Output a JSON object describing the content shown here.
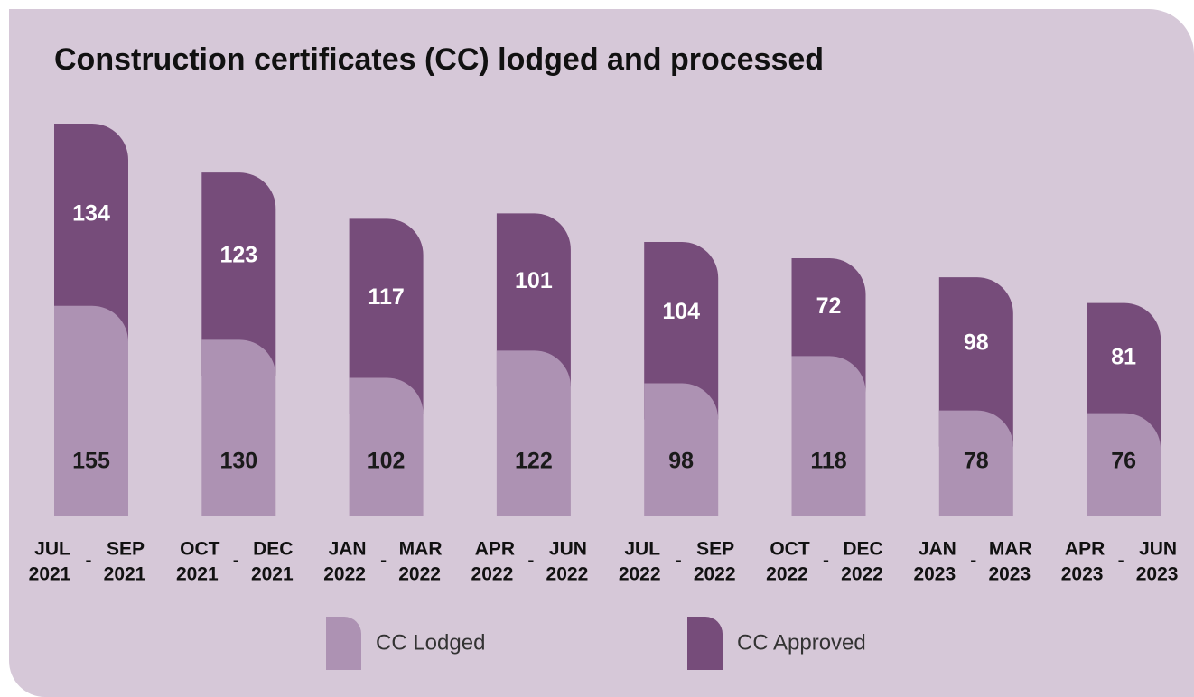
{
  "chart_data": {
    "type": "stacked_bar",
    "title": "Construction certificates (CC) lodged and processed",
    "range_separator": "-",
    "categories": [
      {
        "start_month": "JUL",
        "start_year": "2021",
        "end_month": "SEP",
        "end_year": "2021"
      },
      {
        "start_month": "OCT",
        "start_year": "2021",
        "end_month": "DEC",
        "end_year": "2021"
      },
      {
        "start_month": "JAN",
        "start_year": "2022",
        "end_month": "MAR",
        "end_year": "2022"
      },
      {
        "start_month": "APR",
        "start_year": "2022",
        "end_month": "JUN",
        "end_year": "2022"
      },
      {
        "start_month": "JUL",
        "start_year": "2022",
        "end_month": "SEP",
        "end_year": "2022"
      },
      {
        "start_month": "OCT",
        "start_year": "2022",
        "end_month": "DEC",
        "end_year": "2022"
      },
      {
        "start_month": "JAN",
        "start_year": "2023",
        "end_month": "MAR",
        "end_year": "2023"
      },
      {
        "start_month": "APR",
        "start_year": "2023",
        "end_month": "JUN",
        "end_year": "2023"
      }
    ],
    "series": [
      {
        "name": "CC Lodged",
        "color": "#ad92b3",
        "label_color": "#1a1a1a",
        "values": [
          155,
          130,
          102,
          122,
          98,
          118,
          78,
          76
        ]
      },
      {
        "name": "CC Approved",
        "color": "#764c7a",
        "label_color": "#ffffff",
        "values": [
          134,
          123,
          117,
          101,
          104,
          72,
          98,
          81
        ]
      }
    ]
  }
}
